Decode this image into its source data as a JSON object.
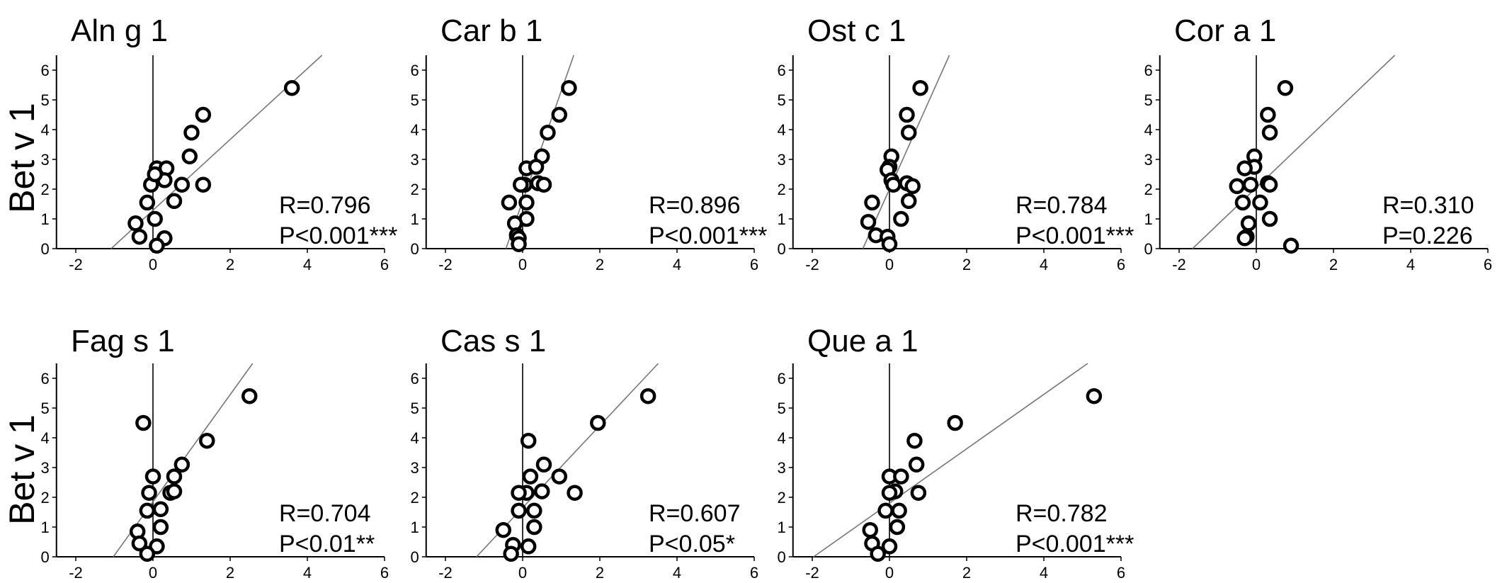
{
  "figure": {
    "row_ylabels": [
      "Bet v 1",
      "Bet v 1"
    ]
  },
  "chart_data": [
    {
      "type": "scatter",
      "title": "Aln g 1",
      "ylabel": "Bet v 1",
      "xlabel": "",
      "xlim": [
        -2.5,
        6
      ],
      "ylim": [
        0,
        6.5
      ],
      "xticks": [
        -2,
        0,
        2,
        4,
        6
      ],
      "yticks": [
        0,
        1,
        2,
        3,
        4,
        5,
        6
      ],
      "annotation": [
        "R=0.796",
        "P<0.001***"
      ],
      "fit_line": {
        "slope": 1.19,
        "intercept": 1.29
      },
      "points": [
        [
          3.6,
          5.4
        ],
        [
          1.3,
          4.5
        ],
        [
          1.0,
          3.9
        ],
        [
          0.95,
          3.1
        ],
        [
          0.1,
          2.7
        ],
        [
          0.35,
          2.7
        ],
        [
          0.3,
          2.3
        ],
        [
          0.75,
          2.15
        ],
        [
          1.3,
          2.15
        ],
        [
          -0.05,
          2.15
        ],
        [
          0.05,
          2.5
        ],
        [
          0.55,
          1.6
        ],
        [
          -0.15,
          1.55
        ],
        [
          0.05,
          1.0
        ],
        [
          -0.45,
          0.85
        ],
        [
          0.3,
          0.35
        ],
        [
          -0.35,
          0.4
        ],
        [
          0.1,
          0.1
        ]
      ]
    },
    {
      "type": "scatter",
      "title": "Car b 1",
      "ylabel": "",
      "xlabel": "",
      "xlim": [
        -2.5,
        6
      ],
      "ylim": [
        0,
        6.5
      ],
      "xticks": [
        -2,
        0,
        2,
        4,
        6
      ],
      "yticks": [
        0,
        1,
        2,
        3,
        4,
        5,
        6
      ],
      "annotation": [
        "R=0.896",
        "P<0.001***"
      ],
      "fit_line": {
        "slope": 3.7,
        "intercept": 1.6
      },
      "points": [
        [
          1.2,
          5.4
        ],
        [
          0.95,
          4.5
        ],
        [
          0.65,
          3.9
        ],
        [
          0.5,
          3.1
        ],
        [
          0.1,
          2.7
        ],
        [
          0.35,
          2.75
        ],
        [
          0.4,
          2.2
        ],
        [
          0.55,
          2.15
        ],
        [
          0.05,
          2.15
        ],
        [
          -0.05,
          2.15
        ],
        [
          -0.35,
          1.55
        ],
        [
          0.1,
          1.55
        ],
        [
          0.1,
          1.0
        ],
        [
          -0.2,
          0.85
        ],
        [
          -0.15,
          0.45
        ],
        [
          -0.1,
          0.35
        ],
        [
          -0.1,
          0.15
        ]
      ]
    },
    {
      "type": "scatter",
      "title": "Ost c 1",
      "ylabel": "",
      "xlabel": "",
      "xlim": [
        -2.5,
        6
      ],
      "ylim": [
        0,
        6.5
      ],
      "xticks": [
        -2,
        0,
        2,
        4,
        6
      ],
      "yticks": [
        0,
        1,
        2,
        3,
        4,
        5,
        6
      ],
      "annotation": [
        "R=0.784",
        "P<0.001***"
      ],
      "fit_line": {
        "slope": 2.9,
        "intercept": 2.0
      },
      "points": [
        [
          0.8,
          5.4
        ],
        [
          0.45,
          4.5
        ],
        [
          0.5,
          3.9
        ],
        [
          0.05,
          3.1
        ],
        [
          0.0,
          2.75
        ],
        [
          -0.05,
          2.65
        ],
        [
          0.05,
          2.3
        ],
        [
          0.1,
          2.15
        ],
        [
          0.45,
          2.2
        ],
        [
          0.6,
          2.1
        ],
        [
          0.5,
          1.6
        ],
        [
          -0.45,
          1.55
        ],
        [
          0.3,
          1.0
        ],
        [
          -0.55,
          0.9
        ],
        [
          -0.35,
          0.45
        ],
        [
          -0.05,
          0.4
        ],
        [
          0.0,
          0.15
        ]
      ]
    },
    {
      "type": "scatter",
      "title": "Cor a 1",
      "ylabel": "",
      "xlabel": "",
      "xlim": [
        -2.5,
        6
      ],
      "ylim": [
        0,
        6.5
      ],
      "xticks": [
        -2,
        0,
        2,
        4,
        6
      ],
      "yticks": [
        0,
        1,
        2,
        3,
        4,
        5,
        6
      ],
      "annotation": [
        "R=0.310",
        "P=0.226"
      ],
      "fit_line": {
        "slope": 1.24,
        "intercept": 2.05
      },
      "points": [
        [
          0.75,
          5.4
        ],
        [
          0.3,
          4.5
        ],
        [
          0.35,
          3.9
        ],
        [
          -0.05,
          3.1
        ],
        [
          -0.05,
          2.75
        ],
        [
          -0.3,
          2.7
        ],
        [
          -0.5,
          2.1
        ],
        [
          0.3,
          2.2
        ],
        [
          0.35,
          2.15
        ],
        [
          -0.15,
          2.15
        ],
        [
          -0.35,
          1.55
        ],
        [
          0.1,
          1.55
        ],
        [
          0.35,
          1.0
        ],
        [
          -0.2,
          0.85
        ],
        [
          -0.25,
          0.4
        ],
        [
          -0.3,
          0.35
        ],
        [
          0.9,
          0.1
        ]
      ]
    },
    {
      "type": "scatter",
      "title": "Fag s 1",
      "ylabel": "Bet v 1",
      "xlabel": "",
      "xlim": [
        -2.5,
        6
      ],
      "ylim": [
        0,
        6.5
      ],
      "xticks": [
        -2,
        0,
        2,
        4,
        6
      ],
      "yticks": [
        0,
        1,
        2,
        3,
        4,
        5,
        6
      ],
      "annotation": [
        "R=0.704",
        "P<0.01**"
      ],
      "fit_line": {
        "slope": 1.8,
        "intercept": 1.85
      },
      "points": [
        [
          2.5,
          5.4
        ],
        [
          -0.25,
          4.5
        ],
        [
          1.4,
          3.9
        ],
        [
          0.75,
          3.1
        ],
        [
          0.0,
          2.7
        ],
        [
          0.55,
          2.7
        ],
        [
          0.45,
          2.15
        ],
        [
          0.55,
          2.2
        ],
        [
          -0.1,
          2.15
        ],
        [
          0.2,
          1.6
        ],
        [
          -0.15,
          1.55
        ],
        [
          0.2,
          1.0
        ],
        [
          -0.4,
          0.85
        ],
        [
          0.1,
          0.35
        ],
        [
          -0.35,
          0.45
        ],
        [
          -0.15,
          0.1
        ]
      ]
    },
    {
      "type": "scatter",
      "title": "Cas s 1",
      "ylabel": "",
      "xlabel": "",
      "xlim": [
        -2.5,
        6
      ],
      "ylim": [
        0,
        6.5
      ],
      "xticks": [
        -2,
        0,
        2,
        4,
        6
      ],
      "yticks": [
        0,
        1,
        2,
        3,
        4,
        5,
        6
      ],
      "annotation": [
        "R=0.607",
        "P<0.05*"
      ],
      "fit_line": {
        "slope": 1.38,
        "intercept": 1.65
      },
      "points": [
        [
          3.25,
          5.4
        ],
        [
          1.95,
          4.5
        ],
        [
          0.15,
          3.9
        ],
        [
          0.55,
          3.1
        ],
        [
          0.95,
          2.7
        ],
        [
          0.2,
          2.7
        ],
        [
          0.5,
          2.2
        ],
        [
          1.35,
          2.15
        ],
        [
          0.1,
          2.15
        ],
        [
          -0.1,
          2.15
        ],
        [
          -0.1,
          1.55
        ],
        [
          0.3,
          1.55
        ],
        [
          0.3,
          1.0
        ],
        [
          -0.5,
          0.9
        ],
        [
          0.15,
          0.35
        ],
        [
          -0.25,
          0.4
        ],
        [
          -0.3,
          0.1
        ]
      ]
    },
    {
      "type": "scatter",
      "title": "Que a 1",
      "ylabel": "",
      "xlabel": "",
      "xlim": [
        -2.5,
        6
      ],
      "ylim": [
        0,
        6.5
      ],
      "xticks": [
        -2,
        0,
        2,
        4,
        6
      ],
      "yticks": [
        0,
        1,
        2,
        3,
        4,
        5,
        6
      ],
      "annotation": [
        "R=0.782",
        "P<0.001***"
      ],
      "fit_line": {
        "slope": 0.915,
        "intercept": 1.8
      },
      "points": [
        [
          5.3,
          5.4
        ],
        [
          1.7,
          4.5
        ],
        [
          0.65,
          3.9
        ],
        [
          0.7,
          3.1
        ],
        [
          0.0,
          2.7
        ],
        [
          0.3,
          2.7
        ],
        [
          0.15,
          2.2
        ],
        [
          0.75,
          2.15
        ],
        [
          0.0,
          2.15
        ],
        [
          -0.1,
          1.55
        ],
        [
          0.25,
          1.55
        ],
        [
          0.2,
          1.0
        ],
        [
          -0.5,
          0.9
        ],
        [
          -0.45,
          0.45
        ],
        [
          0.0,
          0.35
        ],
        [
          -0.3,
          0.1
        ]
      ]
    }
  ]
}
